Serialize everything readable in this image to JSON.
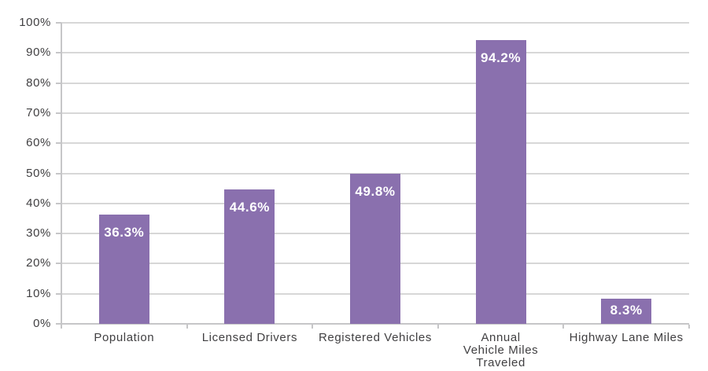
{
  "chart_data": {
    "type": "bar",
    "title": "",
    "xlabel": "",
    "ylabel": "",
    "categories": [
      "Population",
      "Licensed Drivers",
      "Registered Vehicles",
      "Annual\nVehicle Miles\nTraveled",
      "Highway Lane Miles"
    ],
    "values": [
      36.3,
      44.6,
      49.8,
      94.2,
      8.3
    ],
    "value_labels": [
      "36.3%",
      "44.6%",
      "49.8%",
      "94.2%",
      "8.3%"
    ],
    "ylim": [
      0,
      100
    ],
    "y_tick_interval": 10,
    "y_tick_labels": [
      "0%",
      "10%",
      "20%",
      "30%",
      "40%",
      "50%",
      "60%",
      "70%",
      "80%",
      "90%",
      "100%"
    ],
    "grid": true,
    "legend": false,
    "colors": {
      "bar": "#8a70ae",
      "value_label_text": "#ffffff",
      "gridline": "#d7d7d7",
      "axis": "#c6c6c8",
      "tick": "#c6c6c8",
      "text": "#414042"
    }
  }
}
